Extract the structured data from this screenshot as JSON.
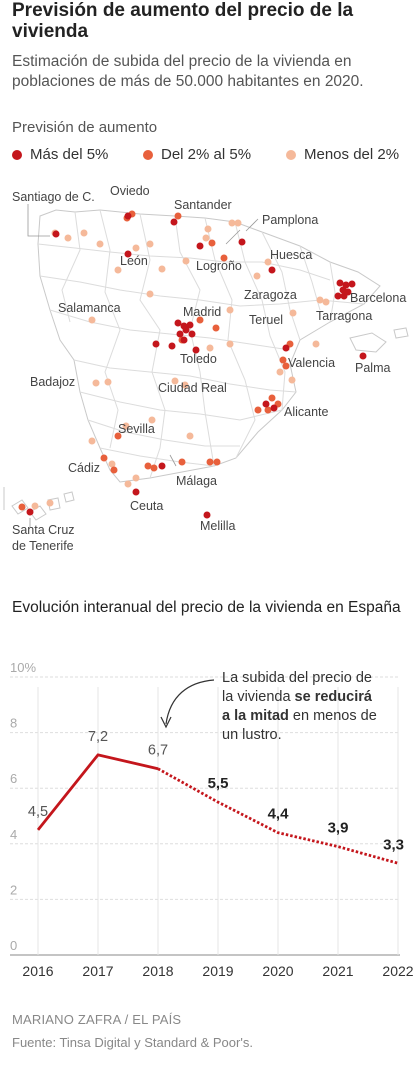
{
  "header": {
    "title": "Previsión de aumento del precio de la vivienda",
    "subtitle": "Estimación de subida del precio de la vivienda en poblaciones de más de 50.000 habitantes en 2020."
  },
  "legend": {
    "heading": "Previsión de aumento",
    "items": [
      {
        "label": "Más del 5%",
        "color": "#c4161c"
      },
      {
        "label": "Del 2% al 5%",
        "color": "#e8603c"
      },
      {
        "label": "Menos del 2%",
        "color": "#f5b99a"
      }
    ]
  },
  "map": {
    "cities": [
      "Santiago de C.",
      "Oviedo",
      "Santander",
      "Pamplona",
      "León",
      "Logroño",
      "Huesca",
      "Zaragoza",
      "Barcelona",
      "Salamanca",
      "Madrid",
      "Teruel",
      "Tarragona",
      "Toledo",
      "Valencia",
      "Palma",
      "Badajoz",
      "Ciudad Real",
      "Alicante",
      "Sevilla",
      "Cádiz",
      "Málaga",
      "Ceuta",
      "Melilla",
      "Santa Cruz de Tenerife"
    ]
  },
  "chart_title": "Evolución interanual del precio de la vivienda en España",
  "chart_data": {
    "type": "line",
    "x": [
      "2016",
      "2017",
      "2018",
      "2019",
      "2020",
      "2021",
      "2022"
    ],
    "series": [
      {
        "values": [
          4.5,
          7.2,
          6.7,
          5.5,
          4.4,
          3.9,
          3.3
        ]
      }
    ],
    "point_labels": [
      "4,5",
      "7,2",
      "6,7",
      "5,5",
      "4,4",
      "3,9",
      "3,3"
    ],
    "forecast_from": "2018",
    "y_ticks": [
      "0",
      "2",
      "4",
      "6",
      "8",
      "10%"
    ],
    "ylim": [
      0,
      10
    ],
    "color": "#c4161c",
    "annotation": {
      "text_1": "La subida del precio de",
      "text_2_pre": "la vivienda ",
      "text_2_bold": "se reducirá",
      "text_3_bold": "a la mitad",
      "text_3_post": " en menos de",
      "text_4": "un lustro."
    }
  },
  "footer": {
    "credit": "MARIANO ZAFRA / EL PAÍS",
    "source": "Fuente: Tinsa Digital y Standard & Poor's."
  }
}
